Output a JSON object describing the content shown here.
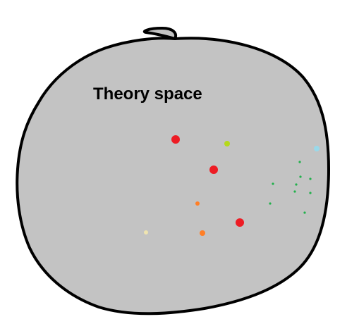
{
  "diagram": {
    "label": "Theory space",
    "region_fill": "#c3c3c3",
    "outline_color": "#000000",
    "points": [
      {
        "color": "#ed1c24",
        "size": "large"
      },
      {
        "color": "#ed1c24",
        "size": "large"
      },
      {
        "color": "#ed1c24",
        "size": "large"
      },
      {
        "color": "#b5d91a",
        "size": "medium"
      },
      {
        "color": "#99d9ea",
        "size": "medium"
      },
      {
        "color": "#ff7f27",
        "size": "medium"
      },
      {
        "color": "#ff7f27",
        "size": "small"
      },
      {
        "color": "#efe4b0",
        "size": "small"
      },
      {
        "color": "#22b14c",
        "size": "tiny"
      },
      {
        "color": "#22b14c",
        "size": "tiny"
      },
      {
        "color": "#22b14c",
        "size": "tiny"
      },
      {
        "color": "#22b14c",
        "size": "tiny"
      },
      {
        "color": "#22b14c",
        "size": "tiny"
      },
      {
        "color": "#22b14c",
        "size": "tiny"
      },
      {
        "color": "#22b14c",
        "size": "tiny"
      },
      {
        "color": "#22b14c",
        "size": "tiny"
      },
      {
        "color": "#22b14c",
        "size": "tiny"
      }
    ]
  }
}
